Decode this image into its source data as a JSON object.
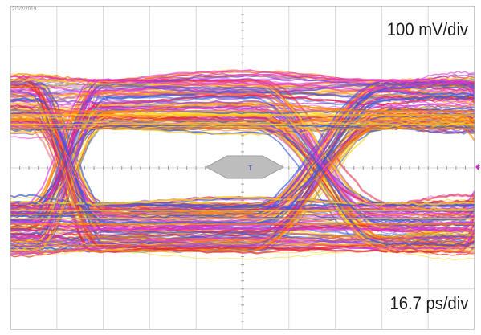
{
  "screen": {
    "corner_tag": "2/3/2/2019",
    "vertical_scale": "100 mV/div",
    "horizontal_scale": "16.7 ps/div",
    "center_marker": "T",
    "trigger_marker": "F"
  },
  "display": {
    "horizontal_divisions": 10,
    "vertical_divisions": 8,
    "grid": true,
    "trace_colors": [
      "#3b5bd9",
      "#9a3bd6",
      "#e22fd8",
      "#e3263f",
      "#ff8a00",
      "#ffd21a"
    ],
    "mask_color": "#bdbdbd",
    "grid_color": "#d9d9d9",
    "trigger_color": "#d62ad6"
  }
}
